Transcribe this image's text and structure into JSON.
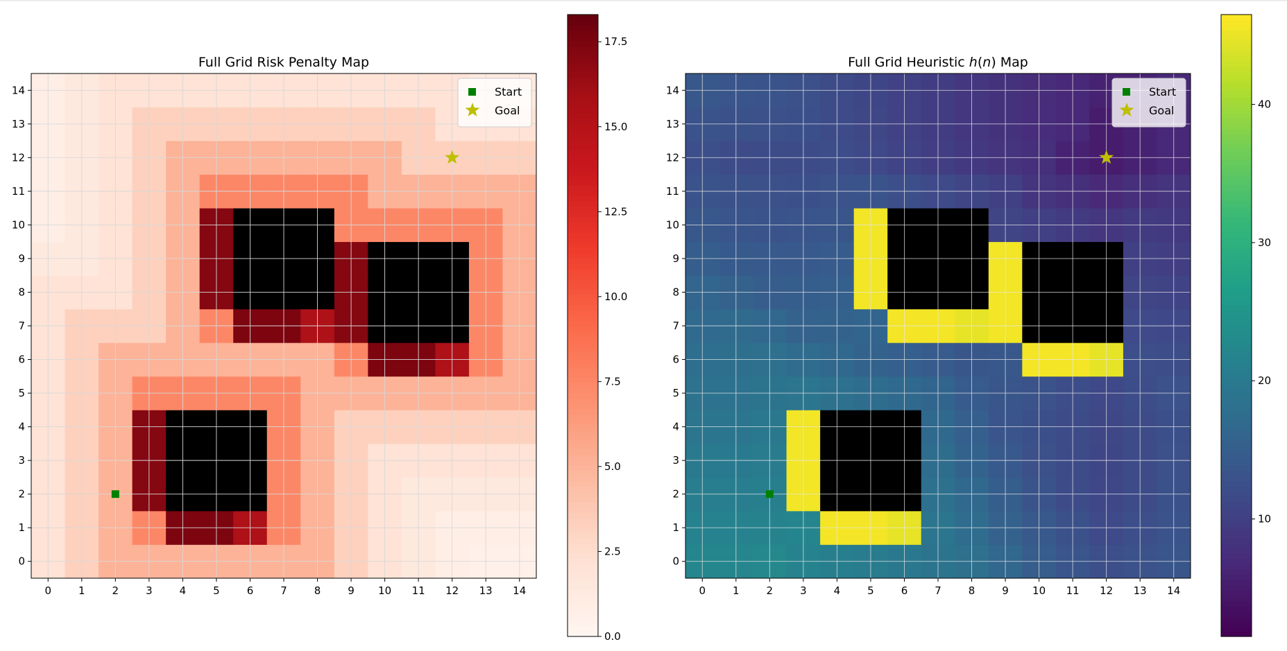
{
  "chart_data": [
    {
      "type": "heatmap",
      "title": "Full Grid Risk Penalty Map",
      "colormap": "Reds",
      "grid_size": 15,
      "x_ticks": [
        "0",
        "1",
        "2",
        "3",
        "4",
        "5",
        "6",
        "7",
        "8",
        "9",
        "10",
        "11",
        "12",
        "13",
        "14"
      ],
      "y_ticks": [
        "0",
        "1",
        "2",
        "3",
        "4",
        "5",
        "6",
        "7",
        "8",
        "9",
        "10",
        "11",
        "12",
        "13",
        "14"
      ],
      "colorbar_ticks": [
        "0.0",
        "2.5",
        "5.0",
        "7.5",
        "10.0",
        "12.5",
        "15.0",
        "17.5"
      ],
      "colorbar_range": [
        0,
        18.3
      ],
      "obstacle_blocks": [
        [
          4,
          2,
          6,
          4
        ],
        [
          6,
          8,
          8,
          10
        ],
        [
          10,
          7,
          12,
          9
        ]
      ],
      "start": [
        2,
        2
      ],
      "goal": [
        12,
        12
      ],
      "legend": [
        {
          "label": "Start",
          "marker": "square",
          "color": "#008000"
        },
        {
          "label": "Goal",
          "marker": "star",
          "color": "#bfbf00"
        }
      ],
      "legend_placement": "top-right"
    },
    {
      "type": "heatmap",
      "title_prefix": "Full Grid Heuristic ",
      "title_var": "h",
      "title_mid_open": "(",
      "title_arg": "n",
      "title_suffix": ") Map",
      "colormap": "viridis",
      "grid_size": 15,
      "x_ticks": [
        "0",
        "1",
        "2",
        "3",
        "4",
        "5",
        "6",
        "7",
        "8",
        "9",
        "10",
        "11",
        "12",
        "13",
        "14"
      ],
      "y_ticks": [
        "0",
        "1",
        "2",
        "3",
        "4",
        "5",
        "6",
        "7",
        "8",
        "9",
        "10",
        "11",
        "12",
        "13",
        "14"
      ],
      "colorbar_ticks": [
        "10",
        "20",
        "30",
        "40"
      ],
      "colorbar_range": [
        1.5,
        46.5
      ],
      "obstacle_blocks": [
        [
          4,
          2,
          6,
          4
        ],
        [
          6,
          8,
          8,
          10
        ],
        [
          10,
          7,
          12,
          9
        ]
      ],
      "start": [
        2,
        2
      ],
      "goal": [
        12,
        12
      ],
      "legend": [
        {
          "label": "Start",
          "marker": "square",
          "color": "#008000"
        },
        {
          "label": "Goal",
          "marker": "star",
          "color": "#bfbf00"
        }
      ],
      "legend_placement": "top-right"
    }
  ]
}
